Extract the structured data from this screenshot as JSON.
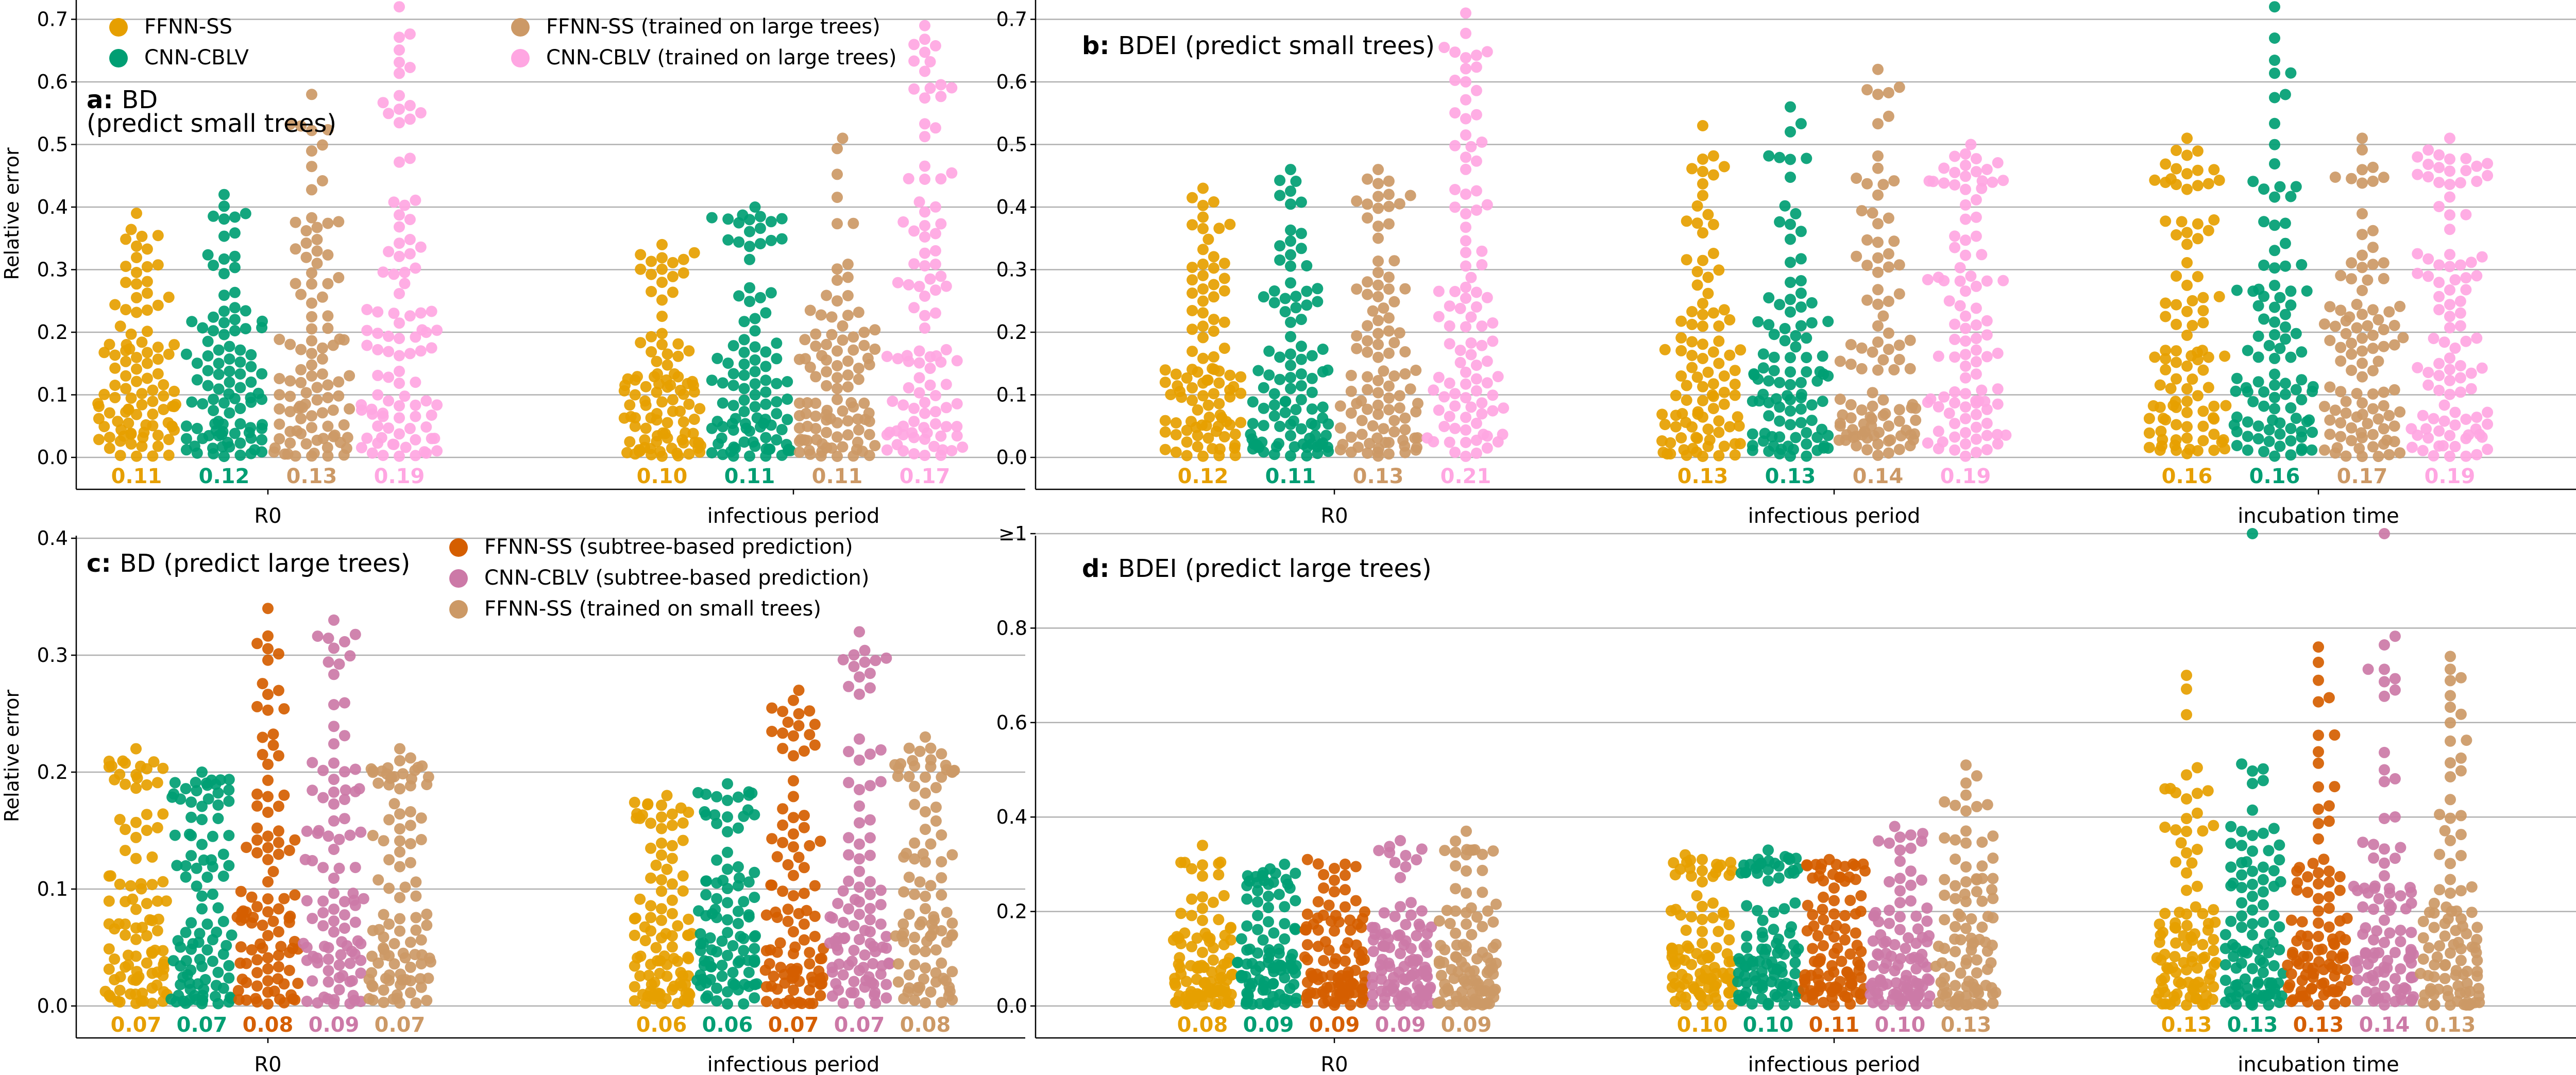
{
  "colors": {
    "FFNN-SS": "#E69F00",
    "CNN-CBLV": "#009E73",
    "FFNN-SS (trained on large trees)": "#CC9966",
    "CNN-CBLV (trained on large trees)": "#FFA6E2",
    "FFNN-SS (subtree-based prediction)": "#D55E00",
    "CNN-CBLV (subtree-based prediction)": "#CC79A7",
    "FFNN-SS (trained on small trees)": "#CC9966"
  },
  "chart_data": [
    {
      "panel": "a",
      "type": "scatter",
      "subtype": "swarm",
      "title_bold": "a:",
      "title": "BD\n(predict small trees)",
      "ylabel": "Relative error",
      "ylim": [
        -0.04,
        0.72
      ],
      "yticks": [
        "0.0",
        "0.1",
        "0.2",
        "0.3",
        "0.4",
        "0.5",
        "0.6",
        "0.7"
      ],
      "ytick_values": [
        0,
        0.1,
        0.2,
        0.3,
        0.4,
        0.5,
        0.6,
        0.7
      ],
      "grid": "horizontal",
      "legend_position": "top-left",
      "legend": [
        "FFNN-SS",
        "CNN-CBLV",
        "FFNN-SS (trained on large trees)",
        "CNN-CBLV (trained on large trees)"
      ],
      "categories": [
        "R0",
        "infectious period"
      ],
      "series": [
        {
          "name": "FFNN-SS",
          "medians": [
            0.11,
            0.1
          ],
          "max": [
            0.39,
            0.34
          ]
        },
        {
          "name": "CNN-CBLV",
          "medians": [
            0.12,
            0.11
          ],
          "max": [
            0.42,
            0.4
          ]
        },
        {
          "name": "FFNN-SS (trained on large trees)",
          "medians": [
            0.13,
            0.11
          ],
          "max": [
            0.58,
            0.51
          ]
        },
        {
          "name": "CNN-CBLV (trained on large trees)",
          "medians": [
            0.19,
            0.17
          ],
          "max": [
            0.72,
            0.69
          ]
        }
      ],
      "median_labels": [
        "0.11",
        "0.12",
        "0.13",
        "0.19",
        "0.10",
        "0.11",
        "0.11",
        "0.17"
      ]
    },
    {
      "panel": "b",
      "type": "scatter",
      "subtype": "swarm",
      "title_bold": "b:",
      "title": "BDEI  (predict small trees)",
      "ylabel": "",
      "ylim": [
        -0.04,
        0.72
      ],
      "yticks": [
        "0.0",
        "0.1",
        "0.2",
        "0.3",
        "0.4",
        "0.5",
        "0.6",
        "0.7"
      ],
      "ytick_values": [
        0,
        0.1,
        0.2,
        0.3,
        0.4,
        0.5,
        0.6,
        0.7
      ],
      "grid": "horizontal",
      "categories": [
        "R0",
        "infectious period",
        "incubation time"
      ],
      "series": [
        {
          "name": "FFNN-SS",
          "medians": [
            0.12,
            0.13,
            0.16
          ],
          "max": [
            0.43,
            0.53,
            0.51
          ]
        },
        {
          "name": "CNN-CBLV",
          "medians": [
            0.11,
            0.13,
            0.16
          ],
          "max": [
            0.46,
            0.56,
            0.72
          ]
        },
        {
          "name": "FFNN-SS (trained on large trees)",
          "medians": [
            0.13,
            0.14,
            0.17
          ],
          "max": [
            0.46,
            0.62,
            0.51
          ]
        },
        {
          "name": "CNN-CBLV (trained on large trees)",
          "medians": [
            0.21,
            0.19,
            0.19
          ],
          "max": [
            0.71,
            0.5,
            0.51
          ]
        }
      ],
      "median_labels": [
        "0.12",
        "0.11",
        "0.13",
        "0.21",
        "0.13",
        "0.13",
        "0.14",
        "0.19",
        "0.16",
        "0.16",
        "0.17",
        "0.19"
      ]
    },
    {
      "panel": "c",
      "type": "scatter",
      "subtype": "swarm",
      "title_bold": "c:",
      "title": "BD  (predict large trees)",
      "ylabel": "Relative error",
      "ylim": [
        -0.027,
        0.405
      ],
      "yticks": [
        "0.0",
        "0.1",
        "0.2",
        "0.3",
        "0.4"
      ],
      "ytick_values": [
        0,
        0.1,
        0.2,
        0.3,
        0.4
      ],
      "grid": "horizontal",
      "legend_position": "top-center",
      "legend": [
        "FFNN-SS (subtree-based prediction)",
        "CNN-CBLV (subtree-based prediction)",
        "FFNN-SS (trained on small trees)"
      ],
      "categories": [
        "R0",
        "infectious period"
      ],
      "series": [
        {
          "name": "FFNN-SS",
          "medians": [
            0.07,
            0.06
          ],
          "max": [
            0.22,
            0.18
          ]
        },
        {
          "name": "CNN-CBLV",
          "medians": [
            0.07,
            0.06
          ],
          "max": [
            0.2,
            0.19
          ]
        },
        {
          "name": "FFNN-SS (subtree-based prediction)",
          "medians": [
            0.08,
            0.07
          ],
          "max": [
            0.34,
            0.27
          ]
        },
        {
          "name": "CNN-CBLV (subtree-based prediction)",
          "medians": [
            0.09,
            0.07
          ],
          "max": [
            0.33,
            0.32
          ]
        },
        {
          "name": "FFNN-SS (trained on small trees)",
          "medians": [
            0.07,
            0.08
          ],
          "max": [
            0.22,
            0.23
          ]
        }
      ],
      "median_labels": [
        "0.07",
        "0.07",
        "0.08",
        "0.09",
        "0.07",
        "0.06",
        "0.06",
        "0.07",
        "0.07",
        "0.08"
      ]
    },
    {
      "panel": "d",
      "type": "scatter",
      "subtype": "swarm",
      "title_bold": "d:",
      "title": "BDEI   (predict large trees)",
      "ylabel": "",
      "ylim": [
        -0.067,
        1.01
      ],
      "yticks": [
        "0.0",
        "0.2",
        "0.4",
        "0.6",
        "0.8",
        "≥1"
      ],
      "ytick_values": [
        0,
        0.2,
        0.4,
        0.6,
        0.8,
        1.0
      ],
      "grid": "horizontal",
      "categories": [
        "R0",
        "infectious period",
        "incubation time"
      ],
      "series": [
        {
          "name": "FFNN-SS",
          "medians": [
            0.08,
            0.1,
            0.13
          ],
          "max": [
            0.34,
            0.32,
            0.7
          ]
        },
        {
          "name": "CNN-CBLV",
          "medians": [
            0.09,
            0.1,
            0.13
          ],
          "max": [
            0.3,
            0.33,
            1.0
          ]
        },
        {
          "name": "FFNN-SS (subtree-based prediction)",
          "medians": [
            0.09,
            0.11,
            0.13
          ],
          "max": [
            0.31,
            0.31,
            0.76
          ]
        },
        {
          "name": "CNN-CBLV (subtree-based prediction)",
          "medians": [
            0.09,
            0.1,
            0.14
          ],
          "max": [
            0.35,
            0.38,
            1.0
          ]
        },
        {
          "name": "FFNN-SS (trained on small trees)",
          "medians": [
            0.09,
            0.13,
            0.13
          ],
          "max": [
            0.37,
            0.51,
            0.74
          ]
        }
      ],
      "median_labels": [
        "0.08",
        "0.09",
        "0.09",
        "0.09",
        "0.09",
        "0.10",
        "0.10",
        "0.11",
        "0.10",
        "0.13",
        "0.13",
        "0.13",
        "0.13",
        "0.14",
        "0.13"
      ]
    }
  ]
}
